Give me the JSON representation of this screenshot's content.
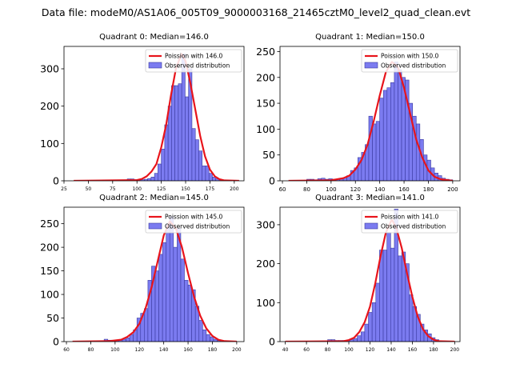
{
  "figure_title": "Data file: modeM0/AS1A06_005T09_9000003168_21465cztM0_level2_quad_clean.evt",
  "colors": {
    "bar_fill": "#7b7bf0",
    "bar_edge": "#3a3aa0",
    "curve": "#e8141b",
    "axes": "#000000"
  },
  "chart_data": [
    {
      "type": "bar",
      "title": "Quadrant 0: Median=146.0",
      "xlim": [
        25,
        210
      ],
      "ylim": [
        0,
        360
      ],
      "xticks": [
        25,
        50,
        75,
        100,
        125,
        150,
        175,
        200
      ],
      "yticks": [
        0,
        100,
        200,
        300
      ],
      "bin_width": 3.5,
      "bins_x": [
        90,
        93.5,
        97,
        100.5,
        104,
        107.5,
        111,
        114.5,
        118,
        121.5,
        125,
        128.5,
        132,
        135.5,
        139,
        142.5,
        146,
        149.5,
        153,
        156.5,
        160,
        163.5,
        167,
        170.5,
        174,
        177.5,
        181,
        184.5
      ],
      "counts": [
        5,
        5,
        3,
        3,
        3,
        4,
        6,
        10,
        20,
        45,
        85,
        150,
        200,
        255,
        255,
        260,
        340,
        225,
        300,
        140,
        110,
        80,
        40,
        40,
        20,
        10,
        5,
        3
      ],
      "curve_x": [
        35,
        100,
        105,
        110,
        115,
        120,
        125,
        130,
        135,
        140,
        145,
        146,
        150,
        155,
        160,
        165,
        170,
        175,
        180,
        185,
        190,
        205
      ],
      "curve_y": [
        0,
        2,
        5,
        12,
        25,
        45,
        90,
        150,
        230,
        300,
        335,
        340,
        320,
        260,
        190,
        120,
        65,
        30,
        12,
        4,
        1,
        0
      ],
      "legend": {
        "curve_label": "Poission with 146.0",
        "bars_label": "Observed distribution"
      }
    },
    {
      "type": "bar",
      "title": "Quadrant 1: Median=150.0",
      "xlim": [
        58,
        206
      ],
      "ylim": [
        0,
        260
      ],
      "xticks": [
        60,
        80,
        100,
        120,
        140,
        160,
        180,
        200
      ],
      "yticks": [
        0,
        50,
        100,
        150,
        200,
        250
      ],
      "bin_width": 3,
      "bins_x": [
        80,
        83,
        86,
        89,
        92,
        95,
        98,
        101,
        104,
        107,
        110,
        113,
        116,
        119,
        122,
        125,
        128,
        131,
        134,
        137,
        140,
        143,
        146,
        149,
        152,
        155,
        158,
        161,
        164,
        167,
        170,
        173,
        176,
        179,
        182,
        185,
        188,
        191,
        194,
        197
      ],
      "counts": [
        3,
        3,
        2,
        4,
        5,
        3,
        4,
        3,
        3,
        5,
        6,
        10,
        20,
        25,
        45,
        55,
        70,
        125,
        110,
        115,
        160,
        175,
        180,
        190,
        230,
        215,
        200,
        195,
        150,
        125,
        110,
        80,
        50,
        40,
        25,
        15,
        10,
        5,
        3,
        2
      ],
      "curve_x": [
        65,
        100,
        110,
        115,
        120,
        125,
        130,
        135,
        140,
        145,
        150,
        155,
        160,
        165,
        170,
        175,
        180,
        185,
        190,
        200
      ],
      "curve_y": [
        0,
        1,
        5,
        10,
        22,
        40,
        70,
        115,
        165,
        210,
        230,
        220,
        180,
        130,
        80,
        45,
        20,
        8,
        3,
        0
      ],
      "legend": {
        "curve_label": "Poission with 150.0",
        "bars_label": "Observed distribution"
      }
    },
    {
      "type": "bar",
      "title": "Quadrant 2: Median=145.0",
      "xlim": [
        58,
        206
      ],
      "ylim": [
        0,
        285
      ],
      "xticks": [
        60,
        80,
        100,
        120,
        140,
        160,
        180,
        200
      ],
      "yticks": [
        0,
        50,
        100,
        150,
        200,
        250
      ],
      "bin_width": 3,
      "bins_x": [
        91,
        94,
        97,
        100,
        103,
        106,
        109,
        112,
        115,
        118,
        121,
        124,
        127,
        130,
        133,
        136,
        139,
        142,
        145,
        148,
        151,
        154,
        157,
        160,
        163,
        166,
        169,
        172,
        175,
        178,
        181,
        184
      ],
      "counts": [
        5,
        3,
        3,
        2,
        3,
        5,
        8,
        15,
        25,
        50,
        60,
        70,
        130,
        160,
        150,
        185,
        210,
        250,
        265,
        200,
        240,
        175,
        130,
        120,
        110,
        75,
        45,
        25,
        15,
        10,
        5,
        2
      ],
      "curve_x": [
        65,
        95,
        105,
        110,
        115,
        120,
        125,
        130,
        135,
        140,
        145,
        150,
        155,
        160,
        165,
        170,
        175,
        180,
        185,
        190,
        200
      ],
      "curve_y": [
        0,
        1,
        4,
        10,
        20,
        38,
        70,
        115,
        170,
        225,
        255,
        240,
        200,
        145,
        95,
        55,
        28,
        12,
        4,
        1,
        0
      ],
      "legend": {
        "curve_label": "Poission with 145.0",
        "bars_label": "Observed distribution"
      }
    },
    {
      "type": "bar",
      "title": "Quadrant 3: Median=141.0",
      "xlim": [
        35,
        205
      ],
      "ylim": [
        0,
        345
      ],
      "xticks": [
        40,
        60,
        80,
        100,
        120,
        140,
        160,
        180,
        200
      ],
      "yticks": [
        0,
        100,
        200,
        300
      ],
      "bin_width": 3.5,
      "bins_x": [
        80,
        83.5,
        87,
        90.5,
        94,
        97.5,
        101,
        104.5,
        108,
        111.5,
        115,
        118.5,
        122,
        125.5,
        129,
        132.5,
        136,
        139.5,
        143,
        146.5,
        150,
        153.5,
        157,
        160.5,
        164,
        167.5,
        171,
        174.5,
        178,
        181.5
      ],
      "counts": [
        5,
        5,
        3,
        3,
        3,
        3,
        5,
        8,
        15,
        25,
        45,
        75,
        100,
        150,
        235,
        235,
        280,
        240,
        340,
        220,
        230,
        200,
        120,
        90,
        70,
        45,
        30,
        20,
        10,
        5
      ],
      "curve_x": [
        40,
        95,
        100,
        105,
        110,
        115,
        120,
        125,
        130,
        135,
        140,
        141,
        145,
        150,
        155,
        160,
        165,
        170,
        175,
        180,
        185,
        200
      ],
      "curve_y": [
        0,
        1,
        4,
        10,
        25,
        50,
        90,
        150,
        220,
        280,
        310,
        312,
        290,
        240,
        175,
        115,
        65,
        32,
        14,
        5,
        1,
        0
      ],
      "legend": {
        "curve_label": "Poission with 141.0",
        "bars_label": "Observed distribution"
      }
    }
  ]
}
